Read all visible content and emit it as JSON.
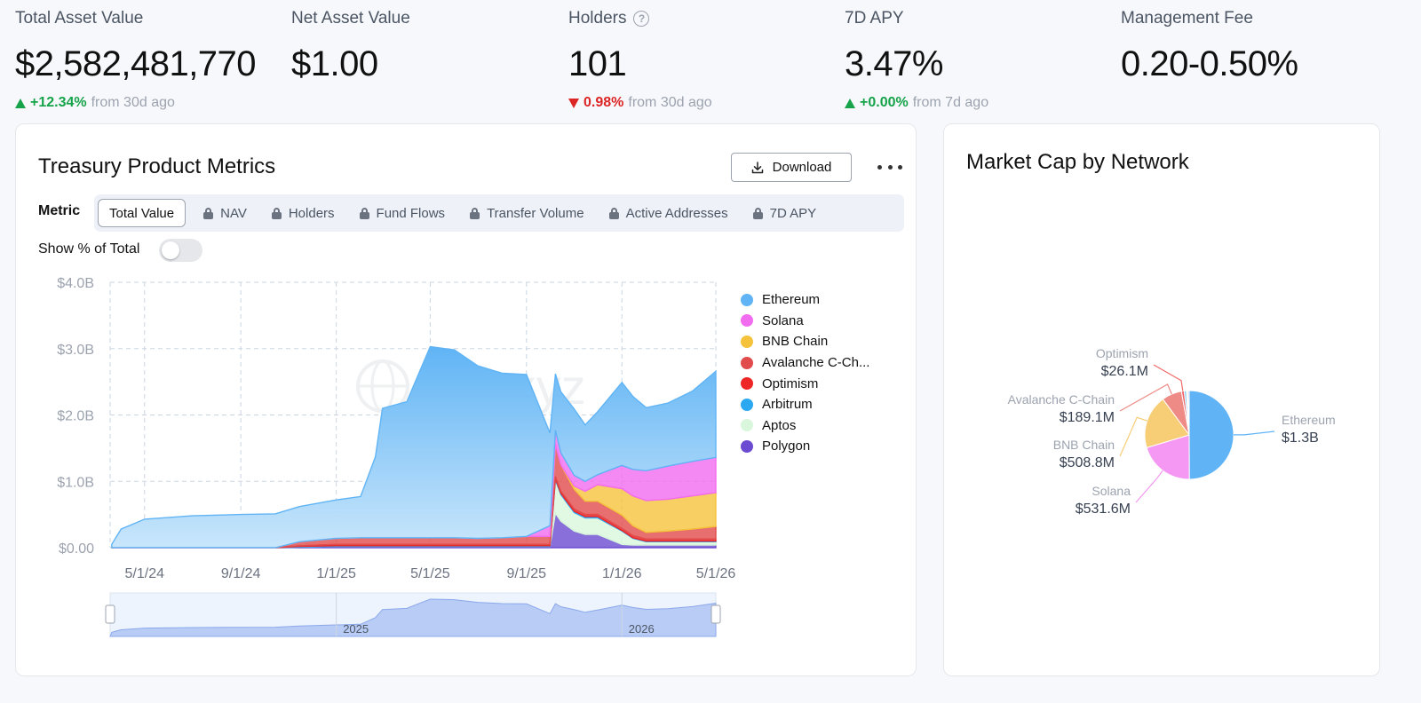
{
  "stats": [
    {
      "label": "Total Asset Value",
      "value": "$2,582,481,770",
      "direction": "up",
      "change": "+12.34%",
      "period": "from 30d ago"
    },
    {
      "label": "Net Asset Value",
      "value": "$1.00"
    },
    {
      "label": "Holders",
      "value": "101",
      "direction": "down",
      "change": "0.98%",
      "period": "from 30d ago",
      "icon": "help-icon"
    },
    {
      "label": "7D APY",
      "value": "3.47%",
      "direction": "up",
      "change": "+0.00%",
      "period": "from 7d ago"
    },
    {
      "label": "Management Fee",
      "value": "0.20-0.50%"
    }
  ],
  "metrics_card": {
    "title": "Treasury Product Metrics",
    "download_label": "Download",
    "metric_label": "Metric",
    "tabs": [
      {
        "label": "Total Value",
        "active": true,
        "locked": false
      },
      {
        "label": "NAV",
        "locked": true
      },
      {
        "label": "Holders",
        "locked": true
      },
      {
        "label": "Fund Flows",
        "locked": true
      },
      {
        "label": "Transfer Volume",
        "locked": true
      },
      {
        "label": "Active Addresses",
        "locked": true
      },
      {
        "label": "7D APY",
        "locked": true
      }
    ],
    "toggle_label": "Show % of Total",
    "toggle_on": false,
    "watermark": "rwa.xyz",
    "navigator_labels": [
      "2025",
      "2026"
    ]
  },
  "network_card": {
    "title": "Market Cap by Network"
  },
  "colors": {
    "Ethereum": "#60b4f5",
    "Solana": "#f26cf0",
    "BNB Chain": "#f5c33b",
    "Avalanche C-Chain": "#e24b4b",
    "Optimism": "#ef2626",
    "Arbitrum": "#2aa8f2",
    "Aptos": "#d9f7dc",
    "Polygon": "#6b4bd1"
  },
  "chart_data": [
    {
      "type": "area",
      "stacked": true,
      "yticks": [
        "$0.00",
        "$1.0B",
        "$2.0B",
        "$3.0B",
        "$4.0B"
      ],
      "ylim": [
        0,
        4.0
      ],
      "xticks": [
        "5/1/24",
        "9/1/24",
        "1/1/25",
        "5/1/25",
        "9/1/25",
        "1/1/26",
        "5/1/26"
      ],
      "grid": true,
      "legend_position": "right",
      "x": [
        "2024-03-20",
        "2024-04-01",
        "2024-05-01",
        "2024-07-01",
        "2024-09-01",
        "2024-10-15",
        "2024-11-15",
        "2025-01-01",
        "2025-02-01",
        "2025-02-20",
        "2025-03-01",
        "2025-04-01",
        "2025-05-01",
        "2025-06-01",
        "2025-07-01",
        "2025-08-01",
        "2025-09-01",
        "2025-10-01",
        "2025-10-08",
        "2025-10-15",
        "2025-11-01",
        "2025-11-15",
        "2025-12-01",
        "2026-01-01",
        "2026-01-15",
        "2026-02-01",
        "2026-03-01",
        "2026-04-01",
        "2026-05-01"
      ],
      "series": [
        {
          "name": "Ethereum",
          "values": [
            0.05,
            0.28,
            0.43,
            0.48,
            0.5,
            0.51,
            0.53,
            0.58,
            0.62,
            1.22,
            1.95,
            2.05,
            2.88,
            2.83,
            2.6,
            2.48,
            2.44,
            1.4,
            0.85,
            0.92,
            1.0,
            0.85,
            0.95,
            1.25,
            1.1,
            0.95,
            0.95,
            1.06,
            1.3
          ]
        },
        {
          "name": "Solana",
          "values": [
            0,
            0,
            0,
            0,
            0,
            0,
            0,
            0,
            0,
            0,
            0,
            0,
            0,
            0,
            0,
            0,
            0,
            0.16,
            0.22,
            0.18,
            0.16,
            0.15,
            0.15,
            0.35,
            0.4,
            0.45,
            0.5,
            0.52,
            0.53
          ]
        },
        {
          "name": "BNB Chain",
          "values": [
            0,
            0,
            0,
            0,
            0,
            0,
            0,
            0,
            0,
            0,
            0,
            0,
            0,
            0,
            0,
            0,
            0,
            0,
            0,
            0,
            0.05,
            0.15,
            0.25,
            0.4,
            0.45,
            0.48,
            0.48,
            0.5,
            0.51
          ]
        },
        {
          "name": "Avalanche C-Chain",
          "values": [
            0,
            0,
            0,
            0,
            0,
            0,
            0.06,
            0.09,
            0.1,
            0.1,
            0.1,
            0.1,
            0.1,
            0.1,
            0.09,
            0.1,
            0.12,
            0.12,
            0.48,
            0.4,
            0.3,
            0.2,
            0.2,
            0.2,
            0.15,
            0.1,
            0.12,
            0.15,
            0.19
          ]
        },
        {
          "name": "Optimism",
          "values": [
            0,
            0,
            0,
            0,
            0,
            0,
            0.01,
            0.02,
            0.02,
            0.02,
            0.02,
            0.02,
            0.02,
            0.02,
            0.02,
            0.02,
            0.02,
            0.02,
            0.03,
            0.03,
            0.03,
            0.03,
            0.03,
            0.03,
            0.03,
            0.03,
            0.03,
            0.03,
            0.03
          ]
        },
        {
          "name": "Arbitrum",
          "values": [
            0,
            0,
            0,
            0,
            0,
            0,
            0.01,
            0.01,
            0.01,
            0.01,
            0.01,
            0.01,
            0.01,
            0.01,
            0.01,
            0.01,
            0.01,
            0.01,
            0.02,
            0.02,
            0.02,
            0.02,
            0.02,
            0.01,
            0.01,
            0.01,
            0.01,
            0.01,
            0.01
          ]
        },
        {
          "name": "Aptos",
          "values": [
            0,
            0,
            0,
            0,
            0,
            0,
            0,
            0,
            0,
            0,
            0,
            0,
            0,
            0,
            0,
            0,
            0,
            0,
            0.5,
            0.4,
            0.28,
            0.25,
            0.25,
            0.2,
            0.1,
            0.05,
            0.05,
            0.05,
            0.05
          ]
        },
        {
          "name": "Polygon",
          "values": [
            0,
            0,
            0,
            0,
            0,
            0,
            0.01,
            0.02,
            0.02,
            0.02,
            0.02,
            0.02,
            0.02,
            0.02,
            0.02,
            0.02,
            0.02,
            0.02,
            0.52,
            0.4,
            0.25,
            0.2,
            0.2,
            0.05,
            0.04,
            0.04,
            0.04,
            0.04,
            0.04
          ]
        }
      ]
    },
    {
      "type": "pie",
      "title": "Market Cap by Network",
      "slices": [
        {
          "name": "Ethereum",
          "label": "Ethereum",
          "value_label": "$1.3B",
          "value": 1300,
          "color": "#60b4f5"
        },
        {
          "name": "Solana",
          "label": "Solana",
          "value_label": "$531.6M",
          "value": 531.6,
          "color": "#f598f3"
        },
        {
          "name": "BNB Chain",
          "label": "BNB Chain",
          "value_label": "$508.8M",
          "value": 508.8,
          "color": "#f7cd75"
        },
        {
          "name": "Avalanche C-Chain",
          "label": "Avalanche C-Chain",
          "value_label": "$189.1M",
          "value": 189.1,
          "color": "#ee8b86"
        },
        {
          "name": "Optimism",
          "label": "Optimism",
          "value_label": "$26.1M",
          "value": 26.1,
          "color": "#f06a6a"
        },
        {
          "name": "Arbitrum",
          "value": 20,
          "color": "#7cc5f5"
        },
        {
          "name": "Aptos",
          "value": 15,
          "color": "#d9f7dc"
        },
        {
          "name": "Polygon",
          "value": 12,
          "color": "#b7a7ee"
        }
      ]
    }
  ]
}
